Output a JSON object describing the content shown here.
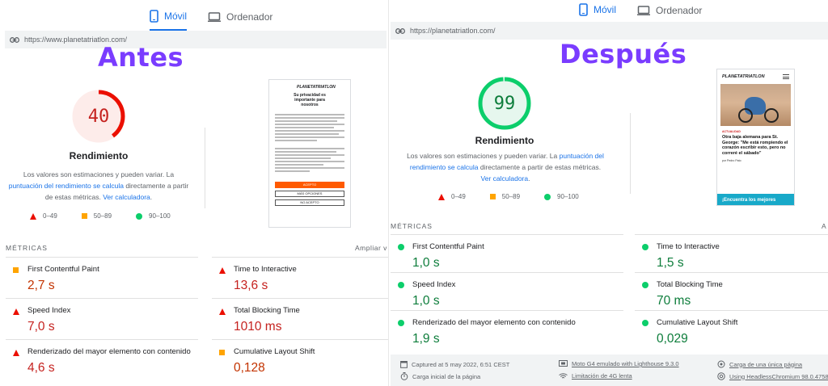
{
  "tabs": {
    "mobile": "Móvil",
    "desktop": "Ordenador"
  },
  "legend": {
    "fail": "0–49",
    "average": "50–89",
    "pass": "90–100"
  },
  "gauge_label": "Rendimiento",
  "desc": {
    "text1": "Los valores son estimaciones y pueden variar. La ",
    "link1": "puntuación del rendimiento se calcula",
    "text2": " directamente a partir de estas métricas. ",
    "link2": "Ver calculadora",
    "text3": "."
  },
  "metrics_title": "MÉTRICAS",
  "before": {
    "headline": "Antes",
    "url": "https://www.planetatriatlon.com/",
    "score": "40",
    "score_fraction": 0.4,
    "expand_label": "Ampliar v",
    "thumb": {
      "brand": "PLANETATRIATLON",
      "heading": "Su privacidad es importante para nosotros",
      "accept": "ACEPTO",
      "more_options": "MÁS OPCIONES",
      "reject": "NO ACEPTO"
    },
    "metrics": [
      {
        "name": "First Contentful Paint",
        "value": "2,7 s",
        "status": "average"
      },
      {
        "name": "Time to Interactive",
        "value": "13,6 s",
        "status": "fail"
      },
      {
        "name": "Speed Index",
        "value": "7,0 s",
        "status": "fail"
      },
      {
        "name": "Total Blocking Time",
        "value": "1010 ms",
        "status": "fail"
      },
      {
        "name": "Renderizado del mayor elemento con contenido",
        "value": "4,6 s",
        "status": "fail"
      },
      {
        "name": "Cumulative Layout Shift",
        "value": "0,128",
        "status": "average"
      }
    ]
  },
  "after": {
    "headline": "Después",
    "url": "https://planetatriatlon.com/",
    "score": "99",
    "score_fraction": 0.99,
    "expand_label": "A",
    "thumb": {
      "brand": "PLANETATRIATLON",
      "category": "ACTUALIDAD",
      "title": "Otra baja alemana para St. George: \"Me está rompiendo el corazón escribir esto, pero no correré el sábado\"",
      "author": "por Pedro Pato",
      "banner": "¡Encuentra los mejores"
    },
    "metrics": [
      {
        "name": "First Contentful Paint",
        "value": "1,0 s",
        "status": "pass"
      },
      {
        "name": "Time to Interactive",
        "value": "1,5 s",
        "status": "pass"
      },
      {
        "name": "Speed Index",
        "value": "1,0 s",
        "status": "pass"
      },
      {
        "name": "Total Blocking Time",
        "value": "70 ms",
        "status": "pass"
      },
      {
        "name": "Renderizado del mayor elemento con contenido",
        "value": "1,9 s",
        "status": "pass"
      },
      {
        "name": "Cumulative Layout Shift",
        "value": "0,029",
        "status": "pass"
      }
    ],
    "footer": {
      "captured": "Captured at 5 may 2022, 6:51 CEST",
      "device": "Moto G4 emulado with Lighthouse 9.3.0",
      "single_load": "Carga de una única página",
      "initial_load": "Carga inicial de la página",
      "throttling": "Limitación de 4G lenta",
      "browser": "Using HeadlessChromium 98.0.4758"
    }
  },
  "colors": {
    "pass": "#0cce6b",
    "average": "#ffa400",
    "fail": "#eb0f00",
    "accent": "#1a73e8",
    "headline": "#7a3cff"
  }
}
